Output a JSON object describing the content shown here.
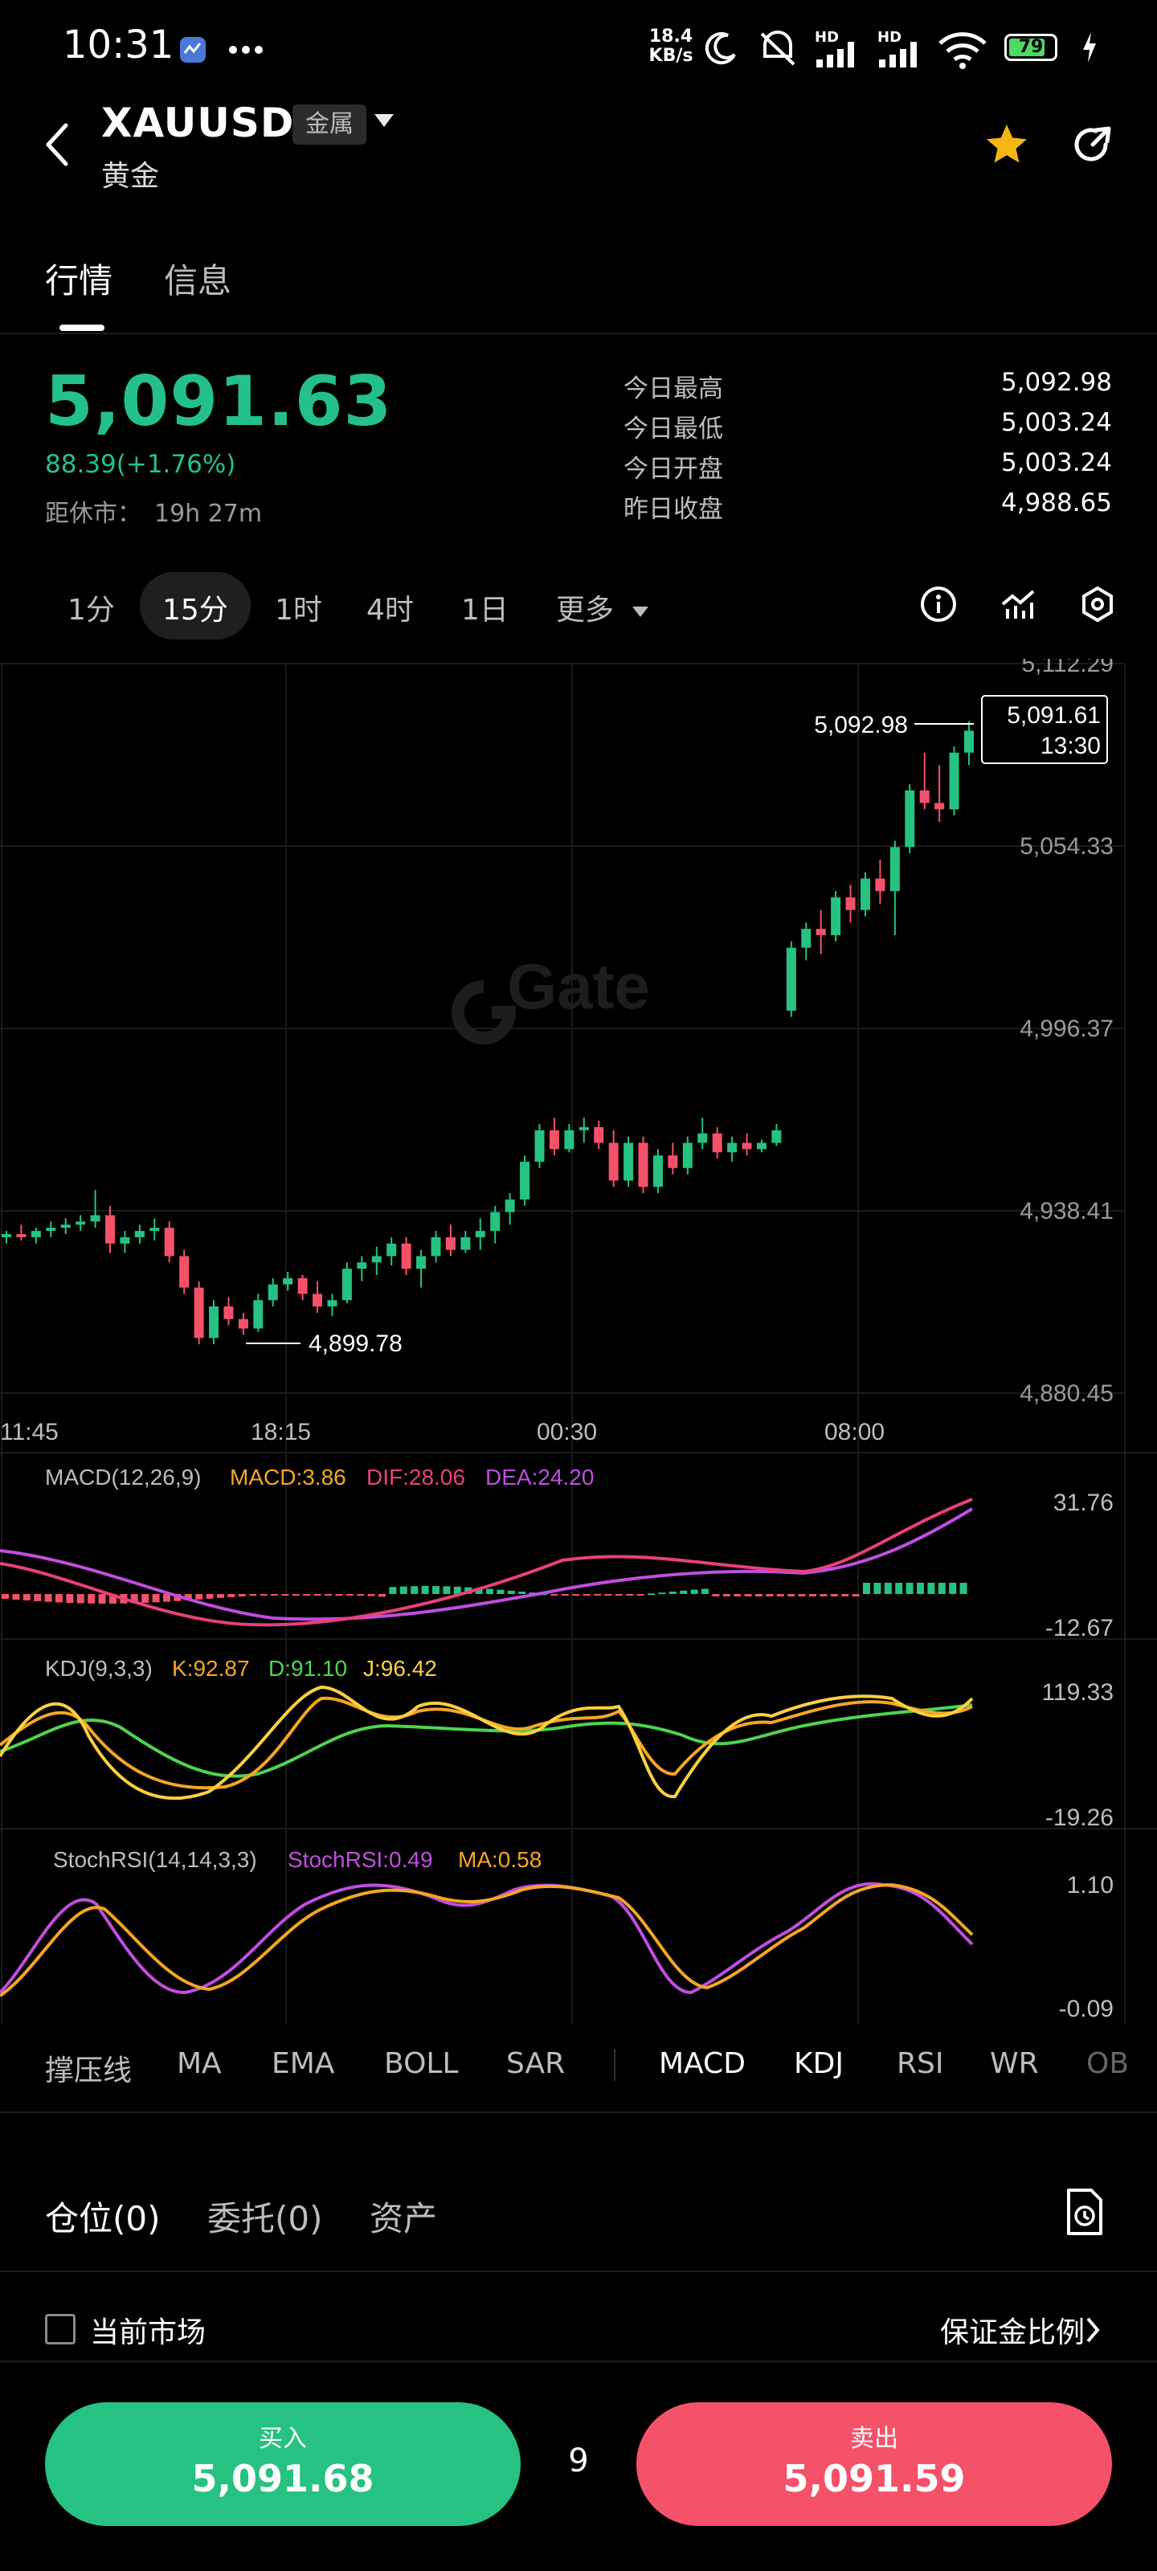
{
  "status_bar": {
    "time": "10:31",
    "net_speed_top": "18.4",
    "net_speed_bottom": "KB/s",
    "hd1": "HD",
    "hd2": "HD",
    "battery": "79"
  },
  "header": {
    "symbol": "XAUUSD",
    "badge": "金属",
    "name": "黄金"
  },
  "tabs": [
    "行情",
    "信息"
  ],
  "quote": {
    "price": "5,091.63",
    "change": "88.39(+1.76%)",
    "close_label": "距休市：",
    "close_time": "19h 27m",
    "stats": [
      {
        "label": "今日最高",
        "value": "5,092.98"
      },
      {
        "label": "今日最低",
        "value": "5,003.24"
      },
      {
        "label": "今日开盘",
        "value": "5,003.24"
      },
      {
        "label": "昨日收盘",
        "value": "4,988.65"
      }
    ]
  },
  "intervals": {
    "items": [
      "1分",
      "15分",
      "1时",
      "4时",
      "1日"
    ],
    "more": "更多",
    "active": "15分"
  },
  "chart_data": {
    "type": "candlestick",
    "price_axis": [
      "5,112.29",
      "5,054.33",
      "4,996.37",
      "4,938.41",
      "4,880.45"
    ],
    "time_axis": [
      "11:45",
      "18:15",
      "00:30",
      "08:00"
    ],
    "high_marker": "5,092.98",
    "low_marker": "4,899.78",
    "last_price_tag": "5,091.61",
    "last_time_tag": "13:30",
    "watermark": "Gate",
    "colors": {
      "up": "#26c281",
      "down": "#f55168"
    },
    "candles": [
      [
        4930,
        4932,
        4928,
        4931
      ],
      [
        4931,
        4934,
        4929,
        4930
      ],
      [
        4930,
        4933,
        4928,
        4932
      ],
      [
        4932,
        4935,
        4930,
        4933
      ],
      [
        4933,
        4936,
        4931,
        4934
      ],
      [
        4934,
        4937,
        4932,
        4935
      ],
      [
        4935,
        4945,
        4933,
        4937
      ],
      [
        4937,
        4940,
        4925,
        4928
      ],
      [
        4928,
        4932,
        4925,
        4930
      ],
      [
        4930,
        4934,
        4928,
        4932
      ],
      [
        4932,
        4936,
        4929,
        4933
      ],
      [
        4933,
        4935,
        4922,
        4924
      ],
      [
        4924,
        4926,
        4912,
        4914
      ],
      [
        4914,
        4916,
        4896,
        4898
      ],
      [
        4898,
        4910,
        4896,
        4908
      ],
      [
        4908,
        4911,
        4902,
        4904
      ],
      [
        4904,
        4906,
        4899,
        4901
      ],
      [
        4901,
        4912,
        4900,
        4910
      ],
      [
        4910,
        4917,
        4908,
        4915
      ],
      [
        4915,
        4919,
        4913,
        4917
      ],
      [
        4917,
        4918,
        4910,
        4912
      ],
      [
        4912,
        4916,
        4906,
        4908
      ],
      [
        4908,
        4912,
        4905,
        4910
      ],
      [
        4910,
        4922,
        4909,
        4920
      ],
      [
        4920,
        4924,
        4916,
        4922
      ],
      [
        4922,
        4927,
        4918,
        4924
      ],
      [
        4924,
        4930,
        4921,
        4928
      ],
      [
        4928,
        4930,
        4918,
        4920
      ],
      [
        4920,
        4926,
        4914,
        4924
      ],
      [
        4924,
        4932,
        4922,
        4930
      ],
      [
        4930,
        4934,
        4924,
        4926
      ],
      [
        4926,
        4932,
        4925,
        4930
      ],
      [
        4930,
        4936,
        4926,
        4932
      ],
      [
        4932,
        4940,
        4928,
        4938
      ],
      [
        4938,
        4944,
        4934,
        4942
      ],
      [
        4942,
        4956,
        4940,
        4954
      ],
      [
        4954,
        4966,
        4952,
        4964
      ],
      [
        4964,
        4968,
        4956,
        4958
      ],
      [
        4958,
        4966,
        4957,
        4964
      ],
      [
        4964,
        4968,
        4960,
        4965
      ],
      [
        4965,
        4967,
        4958,
        4960
      ],
      [
        4960,
        4964,
        4946,
        4948
      ],
      [
        4948,
        4962,
        4946,
        4960
      ],
      [
        4960,
        4962,
        4944,
        4946
      ],
      [
        4946,
        4958,
        4944,
        4956
      ],
      [
        4956,
        4960,
        4950,
        4952
      ],
      [
        4952,
        4962,
        4950,
        4960
      ],
      [
        4960,
        4968,
        4958,
        4963
      ],
      [
        4963,
        4965,
        4955,
        4957
      ],
      [
        4957,
        4962,
        4954,
        4960
      ],
      [
        4960,
        4963,
        4956,
        4958
      ],
      [
        4958,
        4961,
        4957,
        4960
      ],
      [
        4960,
        4966,
        4959,
        4964
      ],
      [
        5002,
        5024,
        5000,
        5022
      ],
      [
        5022,
        5030,
        5018,
        5028
      ],
      [
        5028,
        5034,
        5020,
        5026
      ],
      [
        5026,
        5040,
        5024,
        5038
      ],
      [
        5038,
        5042,
        5030,
        5034
      ],
      [
        5034,
        5046,
        5032,
        5044
      ],
      [
        5044,
        5050,
        5036,
        5040
      ],
      [
        5040,
        5056,
        5026,
        5054
      ],
      [
        5054,
        5074,
        5052,
        5072
      ],
      [
        5072,
        5084,
        5066,
        5068
      ],
      [
        5068,
        5080,
        5062,
        5066
      ],
      [
        5066,
        5086,
        5064,
        5084
      ],
      [
        5084,
        5094,
        5080,
        5091
      ]
    ]
  },
  "macd": {
    "title": "MACD(12,26,9)",
    "macd": "MACD:3.86",
    "dif": "DIF:28.06",
    "dea": "DEA:24.20",
    "top": "31.76",
    "bottom": "-12.67"
  },
  "kdj": {
    "title": "KDJ(9,3,3)",
    "k": "K:92.87",
    "d": "D:91.10",
    "j": "J:96.42",
    "top": "119.33",
    "bottom": "-19.26"
  },
  "stochrsi": {
    "title": "StochRSI(14,14,3,3)",
    "value": "StochRSI:0.49",
    "ma": "MA:0.58",
    "top": "1.10",
    "bottom": "-0.09"
  },
  "indicators": {
    "left": [
      "撑压线",
      "MA",
      "EMA",
      "BOLL",
      "SAR"
    ],
    "right": [
      "MACD",
      "KDJ",
      "RSI",
      "WR",
      "OB"
    ]
  },
  "positions": {
    "tabs": [
      "仓位(0)",
      "委托(0)",
      "资产"
    ],
    "checkbox_label": "当前市场",
    "margin_link": "保证金比例"
  },
  "trade": {
    "buy_label": "买入",
    "buy_price": "5,091.68",
    "sell_label": "卖出",
    "sell_price": "5,091.59",
    "quantity": "9"
  }
}
